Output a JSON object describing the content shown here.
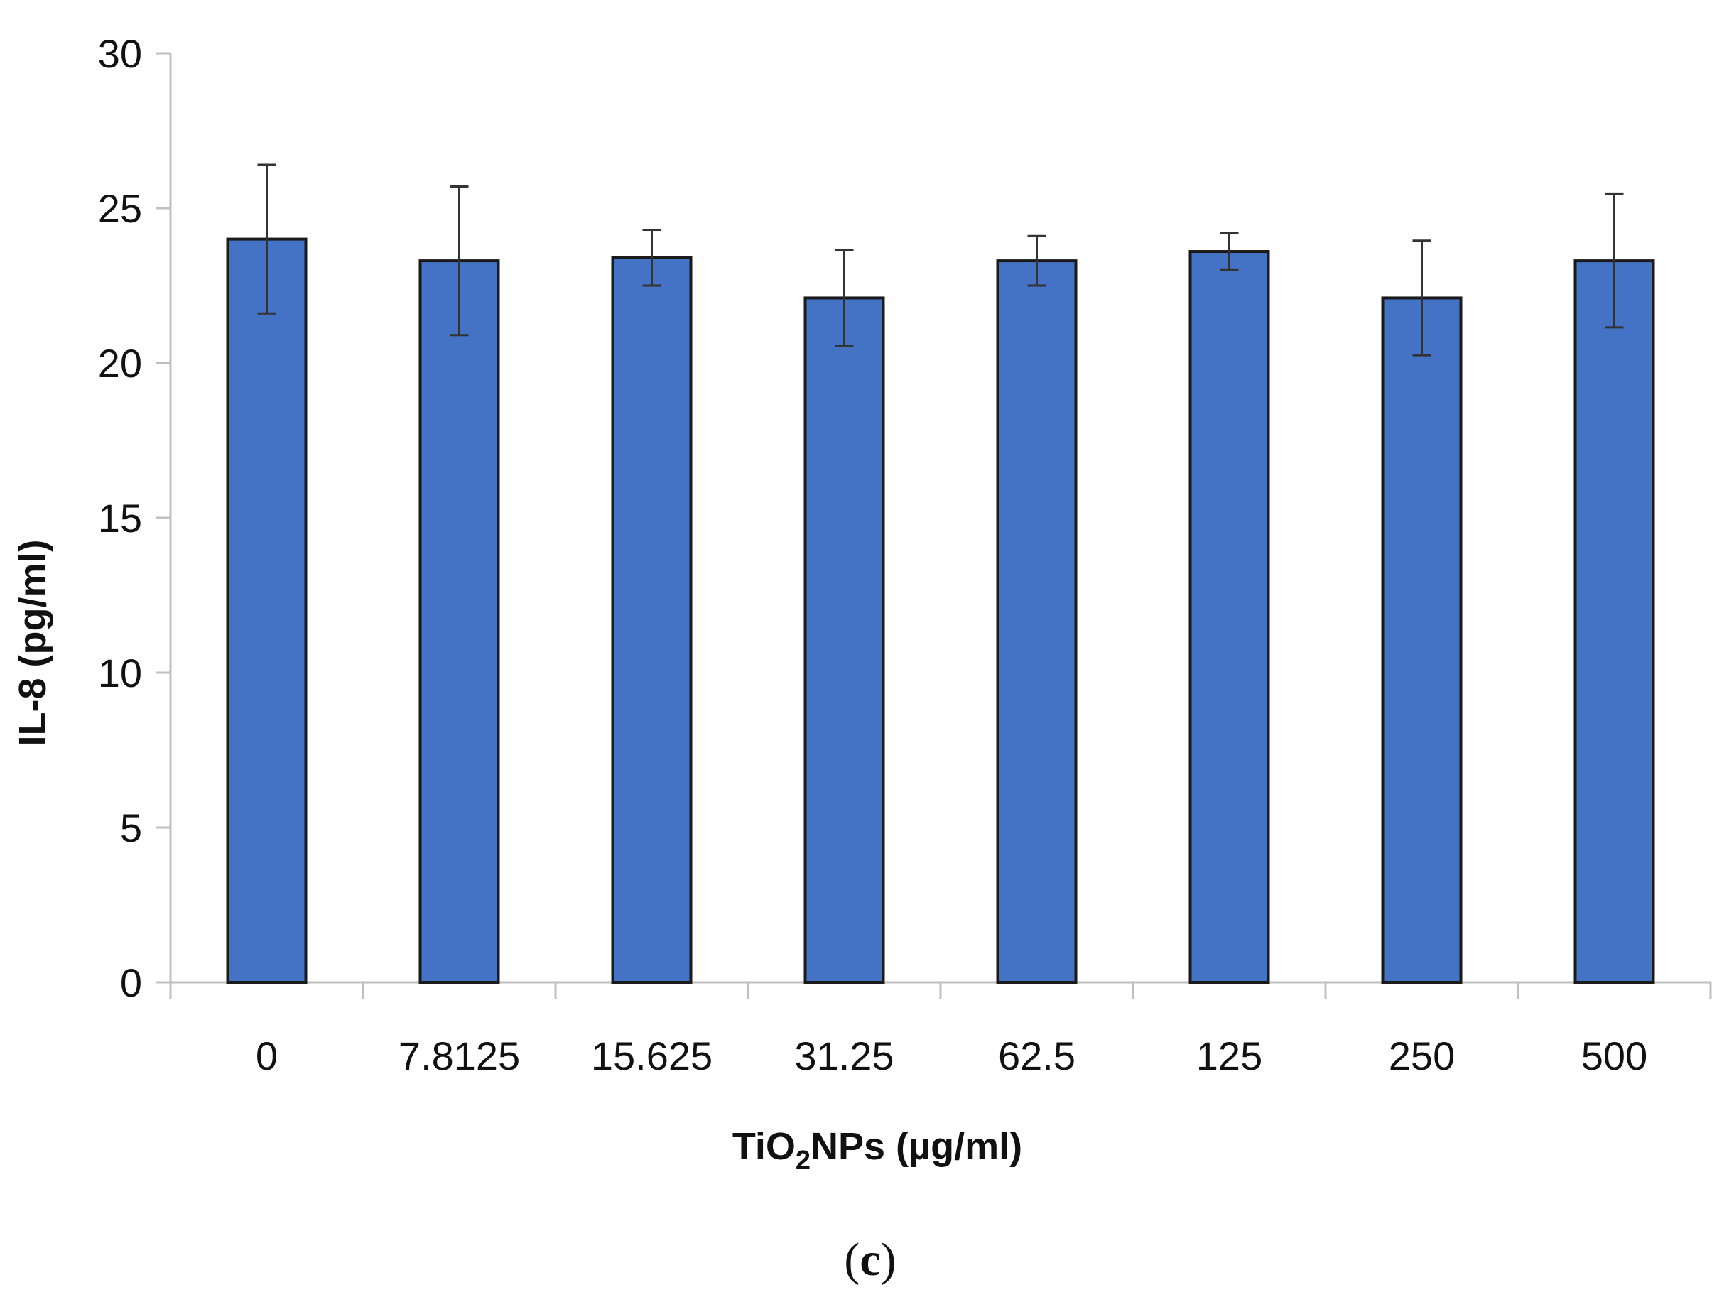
{
  "chart_data": {
    "type": "bar",
    "categories": [
      "0",
      "7.8125",
      "15.625",
      "31.25",
      "62.5",
      "125",
      "250",
      "500"
    ],
    "values": [
      24.0,
      23.3,
      23.4,
      22.1,
      23.3,
      23.6,
      22.1,
      23.3
    ],
    "error_bars": [
      2.4,
      2.4,
      0.9,
      1.55,
      0.8,
      0.6,
      1.85,
      2.15
    ],
    "ylim": [
      0,
      30
    ],
    "yticks": [
      "0",
      "5",
      "10",
      "15",
      "20",
      "25",
      "30"
    ],
    "ylabel": "IL-8 (pg/ml)",
    "xlabel": {
      "prefix": "TiO",
      "subscript": "2",
      "suffix": "NPs (µg/ml)"
    },
    "panel_label": {
      "open": "(",
      "letter": "c",
      "close": ")"
    },
    "grid": false,
    "legend": "none",
    "colors": {
      "bar_fill": "#4472C4",
      "bar_edge": "#1a1a1a",
      "axis": "#bfbfbf",
      "error_bar": "#333333"
    }
  }
}
